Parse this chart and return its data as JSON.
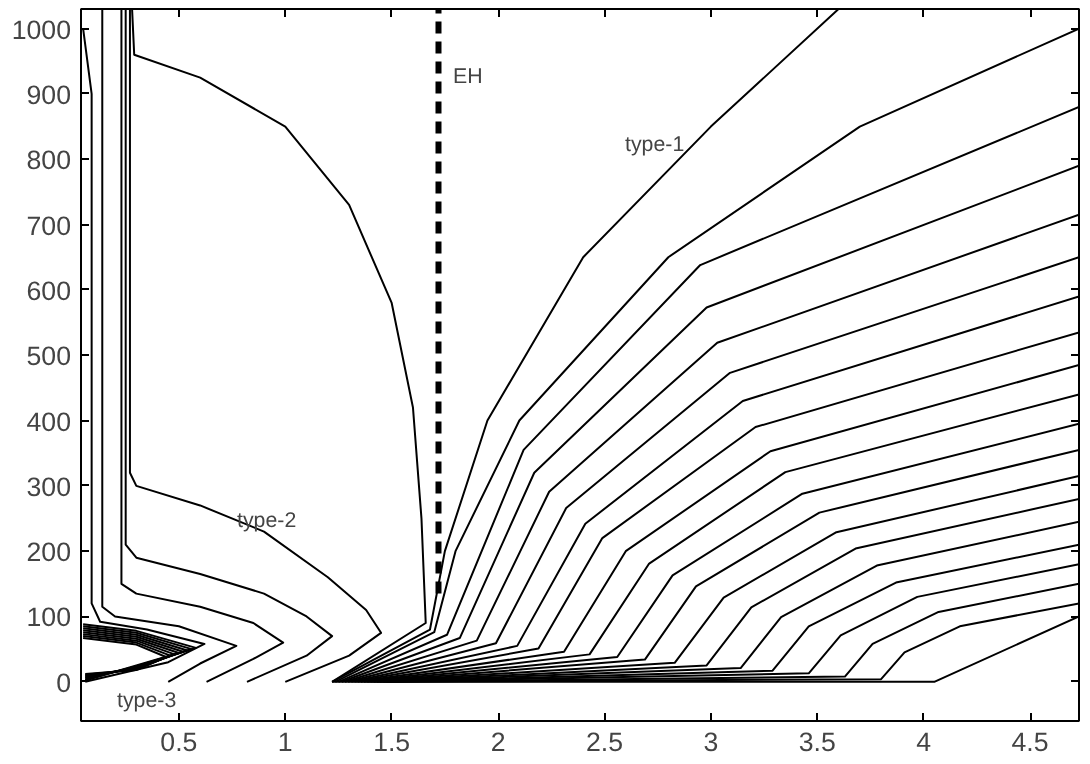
{
  "chart_data": {
    "type": "line",
    "xlim": [
      0.04,
      4.73
    ],
    "ylim": [
      -60,
      1030
    ],
    "xticks": [
      0.5,
      1,
      1.5,
      2,
      2.5,
      3,
      3.5,
      4,
      4.5
    ],
    "yticks": [
      0,
      100,
      200,
      300,
      400,
      500,
      600,
      700,
      800,
      900,
      1000
    ],
    "grid": false,
    "marker": "none",
    "line_style": "solid",
    "annotations": [
      "EH",
      "type-1",
      "type-2",
      "type-3"
    ],
    "series": [
      {
        "color": "#000000",
        "line_style": "dashed",
        "x": [
          1.72,
          1.72
        ],
        "values": [
          135,
          1030
        ]
      },
      {
        "color": "#000000",
        "x": [
          0.28,
          0.29,
          0.6,
          1.0,
          1.3,
          1.5,
          1.6,
          1.64,
          1.66,
          1.22
        ],
        "values": [
          1030,
          960,
          925,
          850,
          730,
          580,
          420,
          250,
          90,
          0
        ]
      },
      {
        "color": "#000000",
        "x": [
          0.27,
          0.27,
          0.3,
          0.6,
          0.9,
          1.2,
          1.38,
          1.45,
          1.3,
          1.0
        ],
        "values": [
          1030,
          320,
          300,
          270,
          230,
          160,
          110,
          75,
          40,
          0
        ]
      },
      {
        "color": "#000000",
        "x": [
          0.25,
          0.25,
          0.3,
          0.6,
          0.9,
          1.1,
          1.22,
          1.1,
          0.82
        ],
        "values": [
          1030,
          210,
          190,
          165,
          135,
          100,
          70,
          40,
          0
        ]
      },
      {
        "color": "#000000",
        "x": [
          0.23,
          0.23,
          0.3,
          0.6,
          0.85,
          0.99,
          0.85,
          0.63
        ],
        "values": [
          1030,
          150,
          135,
          115,
          90,
          60,
          35,
          0
        ]
      },
      {
        "color": "#000000",
        "x": [
          0.14,
          0.14,
          0.2,
          0.5,
          0.77,
          0.6,
          0.45
        ],
        "values": [
          1030,
          115,
          100,
          85,
          55,
          28,
          0
        ]
      },
      {
        "color": "#000000",
        "x": [
          0.05,
          0.09,
          0.09,
          0.13,
          0.35,
          0.62,
          0.45,
          0.06
        ],
        "values": [
          1000,
          900,
          120,
          92,
          80,
          58,
          30,
          0
        ]
      },
      {
        "color": "#000000",
        "x": [
          0.05,
          0.3,
          0.58,
          0.3,
          0.06
        ],
        "values": [
          88,
          78,
          52,
          25,
          2
        ]
      },
      {
        "color": "#000000",
        "x": [
          0.05,
          0.3,
          0.56,
          0.3,
          0.06
        ],
        "values": [
          85,
          75,
          50,
          24,
          3
        ]
      },
      {
        "color": "#000000",
        "x": [
          0.05,
          0.3,
          0.54,
          0.3,
          0.06
        ],
        "values": [
          82,
          72,
          48,
          23,
          5
        ]
      },
      {
        "color": "#000000",
        "x": [
          0.05,
          0.3,
          0.52,
          0.3,
          0.06
        ],
        "values": [
          79,
          69,
          46,
          22,
          6
        ]
      },
      {
        "color": "#000000",
        "x": [
          0.05,
          0.3,
          0.5,
          0.3,
          0.06
        ],
        "values": [
          76,
          66,
          44,
          21,
          8
        ]
      },
      {
        "color": "#000000",
        "x": [
          0.05,
          0.3,
          0.48,
          0.3,
          0.06
        ],
        "values": [
          73,
          63,
          42,
          20,
          9
        ]
      },
      {
        "color": "#000000",
        "x": [
          0.05,
          0.3,
          0.46,
          0.3,
          0.06
        ],
        "values": [
          70,
          60,
          40,
          19,
          11
        ]
      },
      {
        "color": "#000000",
        "x": [
          0.05,
          0.3,
          0.44,
          0.3,
          0.06
        ],
        "values": [
          67,
          57,
          38,
          18,
          12
        ]
      },
      {
        "color": "#000000",
        "x": [
          1.22,
          1.68,
          1.75,
          1.95,
          2.4,
          3.0,
          3.6
        ],
        "values": [
          0,
          80,
          200,
          400,
          650,
          850,
          1030
        ]
      },
      {
        "color": "#000000",
        "x": [
          1.235,
          1.7,
          1.8,
          2.1,
          2.8,
          3.7,
          4.73
        ],
        "values": [
          0,
          76,
          200,
          400,
          650,
          850,
          1000
        ]
      },
      {
        "color": "#000000",
        "x": [
          1.25,
          1.76,
          2.12,
          2.95,
          4.73
        ],
        "values": [
          0,
          72,
          355,
          638,
          880
        ]
      },
      {
        "color": "#000000",
        "x": [
          1.265,
          1.82,
          2.17,
          2.98,
          4.73
        ],
        "values": [
          0,
          67,
          320,
          573,
          790
        ]
      },
      {
        "color": "#000000",
        "x": [
          1.28,
          1.9,
          2.24,
          3.03,
          4.73
        ],
        "values": [
          0,
          63,
          291,
          519,
          715
        ]
      },
      {
        "color": "#000000",
        "x": [
          1.295,
          1.99,
          2.32,
          3.09,
          4.73
        ],
        "values": [
          0,
          59,
          266,
          473,
          650
        ]
      },
      {
        "color": "#000000",
        "x": [
          1.31,
          2.09,
          2.41,
          3.15,
          4.73
        ],
        "values": [
          0,
          55,
          242,
          430,
          590
        ]
      },
      {
        "color": "#000000",
        "x": [
          1.325,
          2.19,
          2.49,
          3.21,
          4.73
        ],
        "values": [
          0,
          51,
          220,
          390,
          535
        ]
      },
      {
        "color": "#000000",
        "x": [
          1.34,
          2.31,
          2.6,
          3.28,
          4.73
        ],
        "values": [
          0,
          46,
          200,
          353,
          485
        ]
      },
      {
        "color": "#000000",
        "x": [
          1.355,
          2.43,
          2.71,
          3.35,
          4.73
        ],
        "values": [
          0,
          42,
          181,
          321,
          440
        ]
      },
      {
        "color": "#000000",
        "x": [
          1.37,
          2.56,
          2.82,
          3.43,
          4.73
        ],
        "values": [
          0,
          38,
          163,
          288,
          395
        ]
      },
      {
        "color": "#000000",
        "x": [
          1.385,
          2.69,
          2.93,
          3.51,
          4.73
        ],
        "values": [
          0,
          34,
          146,
          259,
          355
        ]
      },
      {
        "color": "#000000",
        "x": [
          1.4,
          2.83,
          3.06,
          3.59,
          4.73
        ],
        "values": [
          0,
          29,
          129,
          229,
          315
        ]
      },
      {
        "color": "#000000",
        "x": [
          1.415,
          2.98,
          3.19,
          3.68,
          4.73
        ],
        "values": [
          0,
          25,
          114,
          204,
          280
        ]
      },
      {
        "color": "#000000",
        "x": [
          1.43,
          3.14,
          3.33,
          3.78,
          4.73
        ],
        "values": [
          0,
          21,
          99,
          178,
          245
        ]
      },
      {
        "color": "#000000",
        "x": [
          1.445,
          3.29,
          3.46,
          3.87,
          4.73
        ],
        "values": [
          0,
          17,
          85,
          152,
          210
        ]
      },
      {
        "color": "#000000",
        "x": [
          1.46,
          3.46,
          3.61,
          3.97,
          4.73
        ],
        "values": [
          0,
          13,
          71,
          130,
          180
        ]
      },
      {
        "color": "#000000",
        "x": [
          1.475,
          3.63,
          3.76,
          4.07,
          4.73
        ],
        "values": [
          0,
          8,
          58,
          107,
          150
        ]
      },
      {
        "color": "#000000",
        "x": [
          1.49,
          3.8,
          3.91,
          4.17,
          4.73
        ],
        "values": [
          0,
          4,
          45,
          85,
          120
        ]
      },
      {
        "color": "#000000",
        "x": [
          1.22,
          4.05,
          4.73
        ],
        "values": [
          0,
          0,
          100
        ]
      }
    ]
  }
}
